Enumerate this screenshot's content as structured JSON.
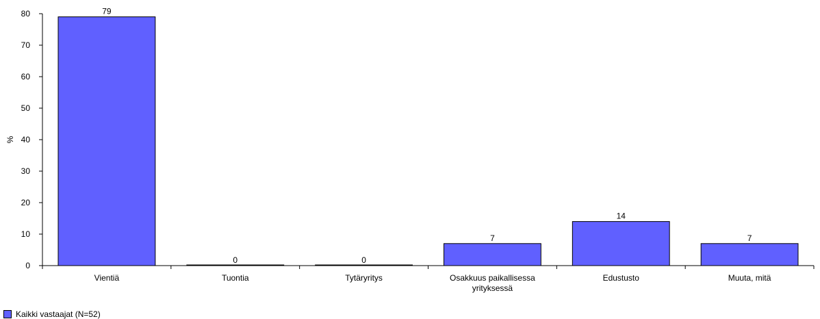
{
  "chart_data": {
    "type": "bar",
    "categories": [
      [
        "Vientiä"
      ],
      [
        "Tuontia"
      ],
      [
        "Tytäryritys"
      ],
      [
        "Osakkuus paikallisessa",
        "yrityksessä"
      ],
      [
        "Edustusto"
      ],
      [
        "Muuta, mitä"
      ]
    ],
    "series": [
      {
        "name": "Kaikki vastaajat (N=52)",
        "values": [
          79,
          0,
          0,
          7,
          14,
          7
        ],
        "labels": [
          "79",
          "0",
          "0",
          "7",
          "14",
          "7"
        ]
      }
    ],
    "ylabel": "%",
    "xlabel": "",
    "ylim": [
      0,
      80
    ],
    "yticks": [
      0,
      10,
      20,
      30,
      40,
      50,
      60,
      70,
      80
    ],
    "grid": false,
    "legend": "bottom-left",
    "colors": {
      "bar": "#6060ff",
      "bar_border": "#000000",
      "axis": "#000000"
    }
  }
}
